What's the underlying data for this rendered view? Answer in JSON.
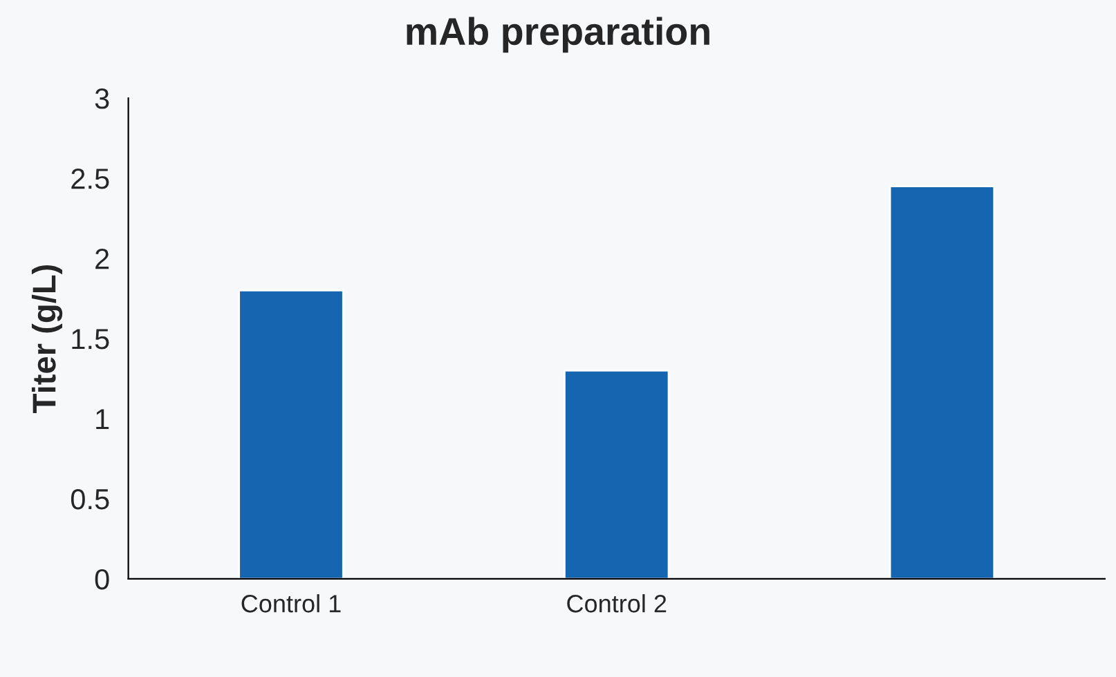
{
  "chart_data": {
    "type": "bar",
    "title": "mAb preparation",
    "ylabel": "Titer (g/L)",
    "categories": [
      "Control 1",
      "Control 2",
      null
    ],
    "values": [
      1.8,
      1.3,
      2.45
    ],
    "color": "#1565b0",
    "ylim": [
      0,
      3
    ],
    "yticks": [
      0,
      0.5,
      1,
      1.5,
      2,
      2.5,
      3
    ],
    "grid": false
  }
}
